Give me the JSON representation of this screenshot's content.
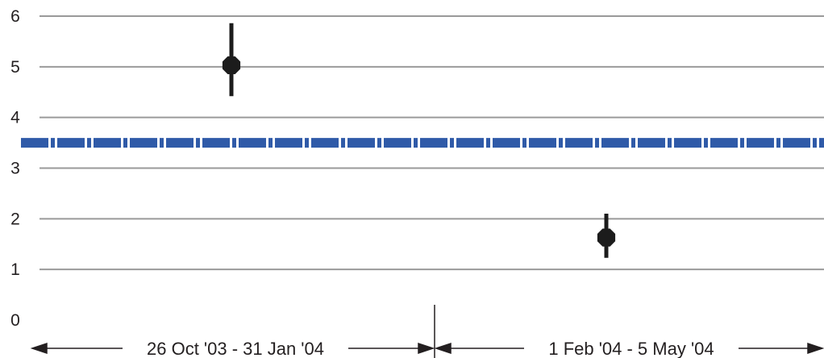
{
  "chart_data": {
    "type": "scatter",
    "title": "",
    "xlabel": "",
    "ylabel": "",
    "ylim": [
      0,
      6
    ],
    "yticks": [
      "0",
      "1",
      "2",
      "3",
      "4",
      "5",
      "6"
    ],
    "grid": true,
    "periods": [
      {
        "label": "26 Oct '03 - 31 Jan '04"
      },
      {
        "label": "1 Feb '04 - 5 May '04"
      }
    ],
    "points": [
      {
        "period": "26 Oct '03 - 31 Jan '04",
        "y": 5.03,
        "low": 4.42,
        "high": 5.86
      },
      {
        "period": "1 Feb '04 - 5 May '04",
        "y": 1.63,
        "low": 1.23,
        "high": 2.1
      }
    ],
    "reference_line": {
      "y": 3.5,
      "color": "#2f5aa8",
      "style": "dashed"
    },
    "colors": {
      "grid": "#9a9a9a",
      "marker": "#1c1c1c",
      "axis": "#231f20"
    }
  }
}
